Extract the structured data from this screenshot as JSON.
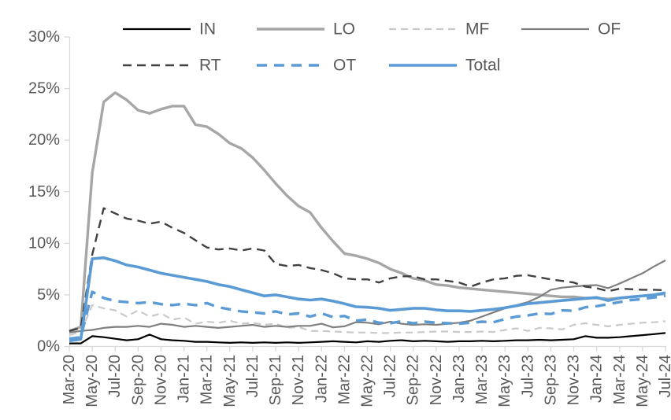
{
  "chart_data": {
    "type": "line",
    "title": "",
    "xlabel": "",
    "ylabel": "",
    "ylim": [
      0,
      30
    ],
    "grid": false,
    "legend_position": "top",
    "y_ticks": [
      {
        "value": 0,
        "label": "0%"
      },
      {
        "value": 5,
        "label": "5%"
      },
      {
        "value": 10,
        "label": "10%"
      },
      {
        "value": 15,
        "label": "15%"
      },
      {
        "value": 20,
        "label": "20%"
      },
      {
        "value": 25,
        "label": "25%"
      },
      {
        "value": 30,
        "label": "30%"
      }
    ],
    "x_label_every": 2,
    "categories": [
      "Mar-20",
      "Apr-20",
      "May-20",
      "Jun-20",
      "Jul-20",
      "Aug-20",
      "Sep-20",
      "Oct-20",
      "Nov-20",
      "Dec-20",
      "Jan-21",
      "Feb-21",
      "Mar-21",
      "Apr-21",
      "May-21",
      "Jun-21",
      "Jul-21",
      "Aug-21",
      "Sep-21",
      "Oct-21",
      "Nov-21",
      "Dec-21",
      "Jan-22",
      "Feb-22",
      "Mar-22",
      "Apr-22",
      "May-22",
      "Jun-22",
      "Jul-22",
      "Aug-22",
      "Sep-22",
      "Oct-22",
      "Nov-22",
      "Dec-22",
      "Jan-23",
      "Feb-23",
      "Mar-23",
      "Apr-23",
      "May-23",
      "Jun-23",
      "Jul-23",
      "Aug-23",
      "Sep-23",
      "Oct-23",
      "Nov-23",
      "Dec-23",
      "Jan-24",
      "Feb-24",
      "Mar-24",
      "Apr-24",
      "May-24",
      "Jun-24",
      "Jul-24"
    ],
    "series": [
      {
        "name": "IN",
        "color": "#000000",
        "width": 2.2,
        "dash": null,
        "values": [
          0.3,
          0.3,
          1.0,
          0.9,
          0.75,
          0.6,
          0.7,
          1.15,
          0.7,
          0.6,
          0.55,
          0.45,
          0.45,
          0.4,
          0.35,
          0.4,
          0.35,
          0.4,
          0.35,
          0.4,
          0.35,
          0.4,
          0.45,
          0.5,
          0.45,
          0.4,
          0.5,
          0.45,
          0.55,
          0.6,
          0.5,
          0.55,
          0.5,
          0.45,
          0.5,
          0.5,
          0.55,
          0.5,
          0.55,
          0.6,
          0.6,
          0.65,
          0.6,
          0.65,
          0.7,
          1.0,
          0.85,
          0.85,
          0.9,
          1.0,
          1.1,
          1.2,
          1.3
        ]
      },
      {
        "name": "LO",
        "color": "#a6a6a6",
        "width": 3.4,
        "dash": null,
        "values": [
          1.5,
          1.9,
          16.8,
          23.7,
          24.6,
          23.9,
          22.9,
          22.6,
          23.0,
          23.3,
          23.3,
          21.5,
          21.3,
          20.6,
          19.7,
          19.2,
          18.3,
          17.1,
          15.8,
          14.6,
          13.6,
          13.0,
          11.5,
          10.2,
          9.0,
          8.8,
          8.5,
          8.1,
          7.5,
          7.1,
          6.6,
          6.4,
          6.0,
          5.9,
          5.7,
          5.6,
          5.5,
          5.4,
          5.3,
          5.2,
          5.1,
          5.0,
          4.9,
          4.8,
          4.8,
          4.7,
          4.7,
          4.6,
          4.7,
          4.8,
          4.9,
          5.0,
          5.1
        ]
      },
      {
        "name": "MF",
        "color": "#c9c9c9",
        "width": 2.2,
        "dash": "9 6",
        "values": [
          1.1,
          1.4,
          4.0,
          3.7,
          3.5,
          2.9,
          3.5,
          2.9,
          3.2,
          2.6,
          2.8,
          2.2,
          2.4,
          2.3,
          2.5,
          2.2,
          2.3,
          2.1,
          2.2,
          1.8,
          1.9,
          1.5,
          1.5,
          1.45,
          1.4,
          1.35,
          1.35,
          1.3,
          1.3,
          1.35,
          1.35,
          1.4,
          1.45,
          1.45,
          1.4,
          1.4,
          1.45,
          1.4,
          1.6,
          1.75,
          1.5,
          1.8,
          1.75,
          1.65,
          2.1,
          2.25,
          2.1,
          1.95,
          2.1,
          2.2,
          2.3,
          2.35,
          2.45
        ]
      },
      {
        "name": "OF",
        "color": "#7f7f7f",
        "width": 2.2,
        "dash": null,
        "values": [
          1.35,
          1.5,
          1.6,
          1.8,
          1.9,
          1.9,
          2.0,
          1.9,
          2.2,
          2.1,
          1.9,
          2.0,
          1.9,
          1.8,
          1.9,
          2.0,
          2.1,
          1.9,
          2.0,
          1.9,
          2.0,
          2.0,
          2.2,
          1.85,
          1.95,
          2.35,
          2.3,
          2.15,
          2.4,
          2.2,
          2.1,
          2.15,
          2.1,
          2.2,
          2.3,
          2.5,
          2.9,
          3.3,
          3.7,
          4.0,
          4.3,
          4.8,
          5.5,
          5.7,
          5.8,
          5.9,
          5.95,
          5.65,
          6.1,
          6.6,
          7.1,
          7.75,
          8.35
        ]
      },
      {
        "name": "RT",
        "color": "#404040",
        "width": 2.4,
        "dash": "11 7",
        "values": [
          1.5,
          1.8,
          8.9,
          13.4,
          12.9,
          12.4,
          12.2,
          11.9,
          12.1,
          11.5,
          11.0,
          10.3,
          9.6,
          9.4,
          9.5,
          9.3,
          9.5,
          9.3,
          8.0,
          7.8,
          7.9,
          7.6,
          7.4,
          7.1,
          6.6,
          6.5,
          6.5,
          6.2,
          6.6,
          6.8,
          6.8,
          6.5,
          6.5,
          6.35,
          6.2,
          5.8,
          6.2,
          6.5,
          6.6,
          6.85,
          6.9,
          6.7,
          6.5,
          6.35,
          6.2,
          5.8,
          5.65,
          5.35,
          5.6,
          5.55,
          5.5,
          5.5,
          5.45
        ]
      },
      {
        "name": "OT",
        "color": "#5b9bd5",
        "width": 3.4,
        "dash": "13 9",
        "values": [
          0.75,
          0.9,
          5.3,
          4.7,
          4.4,
          4.3,
          4.2,
          4.3,
          4.1,
          4.0,
          4.15,
          4.0,
          4.2,
          3.8,
          3.6,
          3.4,
          3.3,
          3.2,
          3.4,
          3.1,
          3.2,
          2.9,
          3.2,
          2.85,
          2.95,
          2.5,
          2.6,
          2.3,
          2.25,
          2.45,
          2.25,
          2.4,
          2.3,
          2.25,
          2.2,
          2.3,
          2.4,
          2.35,
          2.65,
          2.9,
          3.0,
          3.2,
          3.15,
          3.5,
          3.45,
          3.8,
          3.9,
          4.1,
          4.3,
          4.5,
          4.6,
          4.75,
          4.9
        ]
      },
      {
        "name": "Total",
        "color": "#5b9bd5",
        "width": 3.6,
        "dash": null,
        "values": [
          0.55,
          0.7,
          8.5,
          8.6,
          8.3,
          7.9,
          7.7,
          7.4,
          7.1,
          6.9,
          6.7,
          6.5,
          6.3,
          6.0,
          5.8,
          5.5,
          5.2,
          4.9,
          5.0,
          4.8,
          4.6,
          4.5,
          4.6,
          4.4,
          4.15,
          3.85,
          3.8,
          3.7,
          3.5,
          3.6,
          3.7,
          3.7,
          3.55,
          3.45,
          3.45,
          3.4,
          3.5,
          3.6,
          3.75,
          3.95,
          4.15,
          4.25,
          4.35,
          4.45,
          4.55,
          4.65,
          4.75,
          4.45,
          4.7,
          4.8,
          4.9,
          5.0,
          5.2
        ]
      }
    ],
    "legend_rows": [
      [
        "IN",
        "LO",
        "MF",
        "OF"
      ],
      [
        "RT",
        "OT",
        "Total"
      ]
    ],
    "style": {
      "axis_color": "#d9d9d9",
      "label_color": "#595959",
      "background": "#ffffff"
    }
  }
}
